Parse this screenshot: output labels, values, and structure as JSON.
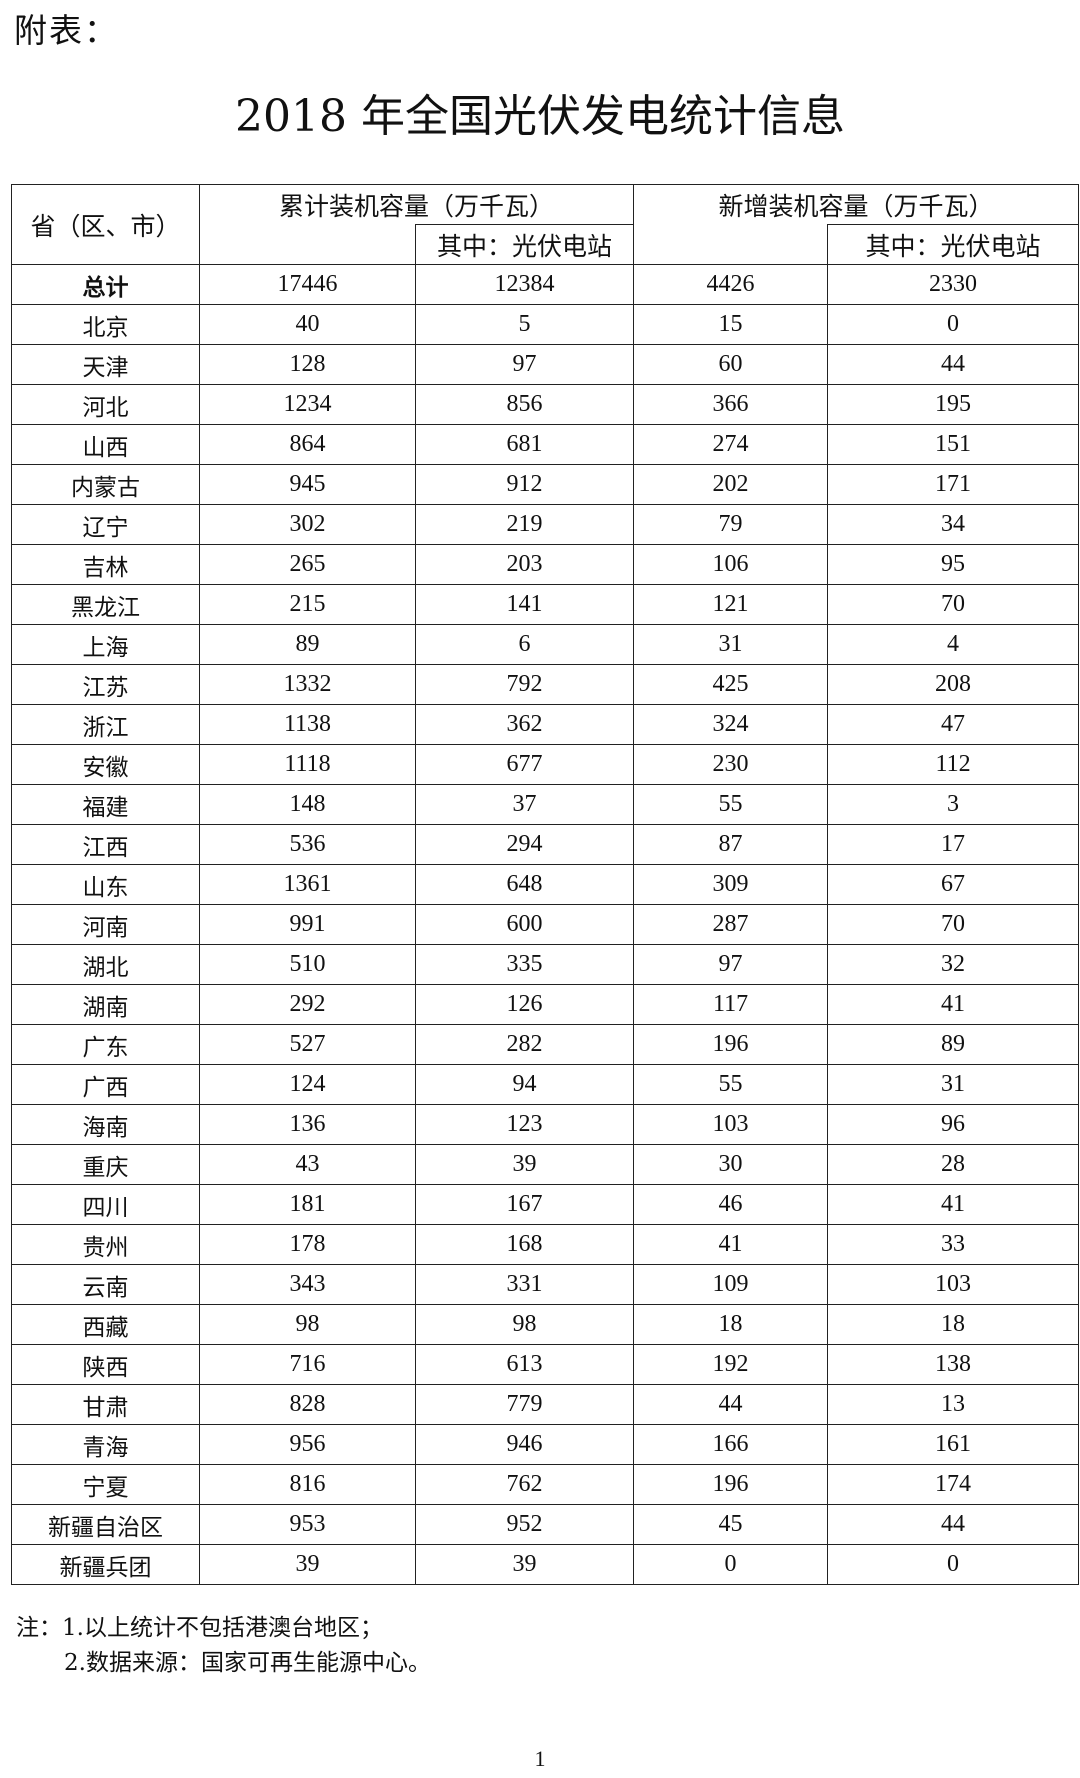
{
  "prefix": "附表：",
  "title": "2018 年全国光伏发电统计信息",
  "header": {
    "region": "省（区、市）",
    "cumulative": "累计装机容量（万千瓦）",
    "new": "新增装机容量（万千瓦）",
    "of_which_pv_station": "其中：光伏电站"
  },
  "rows": [
    {
      "name": "总计",
      "c": "17446",
      "cp": "12384",
      "n": "4426",
      "np": "2330"
    },
    {
      "name": "北京",
      "c": "40",
      "cp": "5",
      "n": "15",
      "np": "0"
    },
    {
      "name": "天津",
      "c": "128",
      "cp": "97",
      "n": "60",
      "np": "44"
    },
    {
      "name": "河北",
      "c": "1234",
      "cp": "856",
      "n": "366",
      "np": "195"
    },
    {
      "name": "山西",
      "c": "864",
      "cp": "681",
      "n": "274",
      "np": "151"
    },
    {
      "name": "内蒙古",
      "c": "945",
      "cp": "912",
      "n": "202",
      "np": "171"
    },
    {
      "name": "辽宁",
      "c": "302",
      "cp": "219",
      "n": "79",
      "np": "34"
    },
    {
      "name": "吉林",
      "c": "265",
      "cp": "203",
      "n": "106",
      "np": "95"
    },
    {
      "name": "黑龙江",
      "c": "215",
      "cp": "141",
      "n": "121",
      "np": "70"
    },
    {
      "name": "上海",
      "c": "89",
      "cp": "6",
      "n": "31",
      "np": "4"
    },
    {
      "name": "江苏",
      "c": "1332",
      "cp": "792",
      "n": "425",
      "np": "208"
    },
    {
      "name": "浙江",
      "c": "1138",
      "cp": "362",
      "n": "324",
      "np": "47"
    },
    {
      "name": "安徽",
      "c": "1118",
      "cp": "677",
      "n": "230",
      "np": "112"
    },
    {
      "name": "福建",
      "c": "148",
      "cp": "37",
      "n": "55",
      "np": "3"
    },
    {
      "name": "江西",
      "c": "536",
      "cp": "294",
      "n": "87",
      "np": "17"
    },
    {
      "name": "山东",
      "c": "1361",
      "cp": "648",
      "n": "309",
      "np": "67"
    },
    {
      "name": "河南",
      "c": "991",
      "cp": "600",
      "n": "287",
      "np": "70"
    },
    {
      "name": "湖北",
      "c": "510",
      "cp": "335",
      "n": "97",
      "np": "32"
    },
    {
      "name": "湖南",
      "c": "292",
      "cp": "126",
      "n": "117",
      "np": "41"
    },
    {
      "name": "广东",
      "c": "527",
      "cp": "282",
      "n": "196",
      "np": "89"
    },
    {
      "name": "广西",
      "c": "124",
      "cp": "94",
      "n": "55",
      "np": "31"
    },
    {
      "name": "海南",
      "c": "136",
      "cp": "123",
      "n": "103",
      "np": "96"
    },
    {
      "name": "重庆",
      "c": "43",
      "cp": "39",
      "n": "30",
      "np": "28"
    },
    {
      "name": "四川",
      "c": "181",
      "cp": "167",
      "n": "46",
      "np": "41"
    },
    {
      "name": "贵州",
      "c": "178",
      "cp": "168",
      "n": "41",
      "np": "33"
    },
    {
      "name": "云南",
      "c": "343",
      "cp": "331",
      "n": "109",
      "np": "103"
    },
    {
      "name": "西藏",
      "c": "98",
      "cp": "98",
      "n": "18",
      "np": "18"
    },
    {
      "name": "陕西",
      "c": "716",
      "cp": "613",
      "n": "192",
      "np": "138"
    },
    {
      "name": "甘肃",
      "c": "828",
      "cp": "779",
      "n": "44",
      "np": "13"
    },
    {
      "name": "青海",
      "c": "956",
      "cp": "946",
      "n": "166",
      "np": "161"
    },
    {
      "name": "宁夏",
      "c": "816",
      "cp": "762",
      "n": "196",
      "np": "174"
    },
    {
      "name": "新疆自治区",
      "c": "953",
      "cp": "952",
      "n": "45",
      "np": "44"
    },
    {
      "name": "新疆兵团",
      "c": "39",
      "cp": "39",
      "n": "0",
      "np": "0"
    }
  ],
  "notes": [
    "注：1.以上统计不包括港澳台地区；",
    "2.数据来源：国家可再生能源中心。"
  ],
  "page_number": "1"
}
